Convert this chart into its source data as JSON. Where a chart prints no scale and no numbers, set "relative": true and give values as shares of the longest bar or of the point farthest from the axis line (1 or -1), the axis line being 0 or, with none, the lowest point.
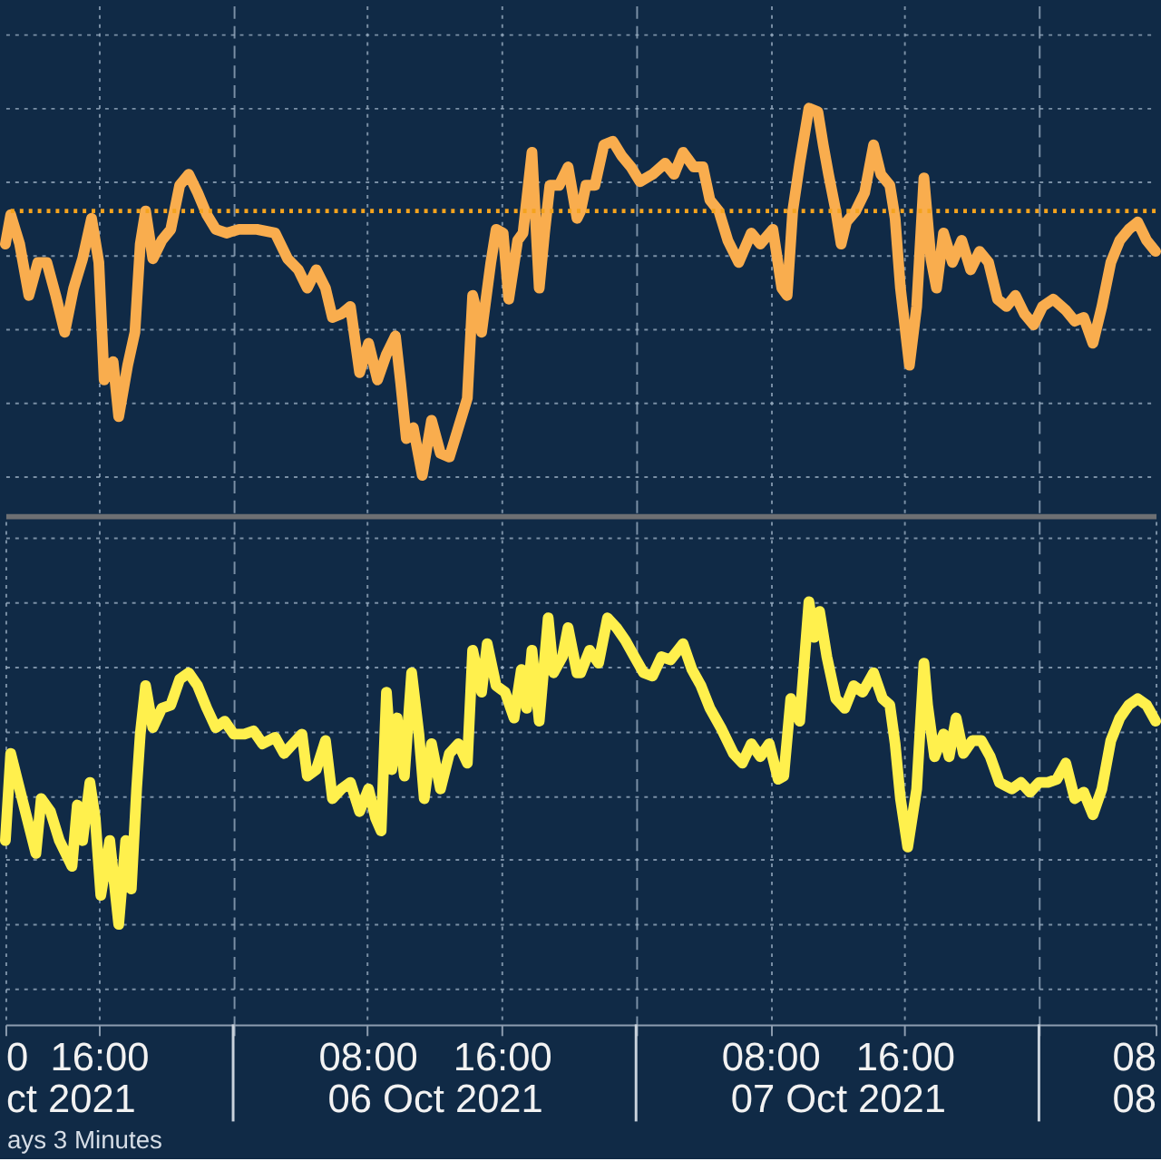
{
  "chart_data": [
    {
      "type": "line",
      "relative": true,
      "grid": true,
      "tick_labels": false,
      "xlim": [
        "2021-10-05T10:26",
        "2021-10-08T06:57"
      ],
      "xticks": [
        {
          "value": "2021-10-05T16:00",
          "label": null
        },
        {
          "value": "2021-10-06T00:00",
          "label": null
        },
        {
          "value": "2021-10-06T08:00",
          "label": null
        },
        {
          "value": "2021-10-06T16:00",
          "label": null
        },
        {
          "value": "2021-10-07T00:00",
          "label": null
        },
        {
          "value": "2021-10-07T08:00",
          "label": null
        },
        {
          "value": "2021-10-07T16:00",
          "label": null
        },
        {
          "value": "2021-10-08T00:00",
          "label": null
        }
      ],
      "x": [
        "2021-10-05T10:26",
        "2021-10-05T10:45",
        "2021-10-05T11:17",
        "2021-10-05T11:50",
        "2021-10-05T12:22",
        "2021-10-05T12:54",
        "2021-10-05T13:26",
        "2021-10-05T13:58",
        "2021-10-05T14:30",
        "2021-10-05T15:02",
        "2021-10-05T15:34",
        "2021-10-05T16:00",
        "2021-10-05T16:19",
        "2021-10-05T16:51",
        "2021-10-05T17:11",
        "2021-10-05T17:43",
        "2021-10-05T18:09",
        "2021-10-05T18:28",
        "2021-10-05T18:47",
        "2021-10-05T19:13",
        "2021-10-05T19:45",
        "2021-10-05T20:17",
        "2021-10-05T20:49",
        "2021-10-05T21:21",
        "2021-10-05T21:53",
        "2021-10-05T22:26",
        "2021-10-05T22:58",
        "2021-10-05T23:36",
        "2021-10-06T00:21",
        "2021-10-06T01:25",
        "2021-10-06T02:30",
        "2021-10-06T03:15",
        "2021-10-06T03:53",
        "2021-10-06T04:25",
        "2021-10-06T04:57",
        "2021-10-06T05:30",
        "2021-10-06T05:55",
        "2021-10-06T06:27",
        "2021-10-06T06:59",
        "2021-10-06T07:32",
        "2021-10-06T08:04",
        "2021-10-06T08:36",
        "2021-10-06T09:08",
        "2021-10-06T09:40",
        "2021-10-06T09:59",
        "2021-10-06T10:19",
        "2021-10-06T10:44",
        "2021-10-06T11:16",
        "2021-10-06T11:49",
        "2021-10-06T12:21",
        "2021-10-06T12:53",
        "2021-10-06T13:25",
        "2021-10-06T13:57",
        "2021-10-06T14:16",
        "2021-10-06T14:48",
        "2021-10-06T15:21",
        "2021-10-06T15:40",
        "2021-10-06T16:05",
        "2021-10-06T16:25",
        "2021-10-06T16:57",
        "2021-10-06T17:16",
        "2021-10-06T17:48",
        "2021-10-06T18:14",
        "2021-10-06T18:33",
        "2021-10-06T18:52",
        "2021-10-06T19:25",
        "2021-10-06T19:57",
        "2021-10-06T20:29",
        "2021-10-06T20:42",
        "2021-10-06T21:01",
        "2021-10-06T21:33",
        "2021-10-06T22:05",
        "2021-10-06T22:37",
        "2021-10-06T23:09",
        "2021-10-06T23:42",
        "2021-10-07T00:14",
        "2021-10-07T00:59",
        "2021-10-07T01:44",
        "2021-10-07T02:16",
        "2021-10-07T02:48",
        "2021-10-07T03:26",
        "2021-10-07T03:59",
        "2021-10-07T04:24",
        "2021-10-07T04:56",
        "2021-10-07T05:28",
        "2021-10-07T06:07",
        "2021-10-07T06:52",
        "2021-10-07T07:24",
        "2021-10-07T08:09",
        "2021-10-07T08:41",
        "2021-10-07T09:00",
        "2021-10-07T09:20",
        "2021-10-07T09:45",
        "2021-10-07T10:18",
        "2021-10-07T10:50",
        "2021-10-07T11:09",
        "2021-10-07T11:28",
        "2021-10-07T11:54",
        "2021-10-07T12:13",
        "2021-10-07T12:32",
        "2021-10-07T13:05",
        "2021-10-07T13:37",
        "2021-10-07T14:09",
        "2021-10-07T14:35",
        "2021-10-07T15:07",
        "2021-10-07T15:26",
        "2021-10-07T15:45",
        "2021-10-07T16:17",
        "2021-10-07T16:43",
        "2021-10-07T17:09",
        "2021-10-07T17:34",
        "2021-10-07T17:54",
        "2021-10-07T18:19",
        "2021-10-07T18:51",
        "2021-10-07T19:24",
        "2021-10-07T19:56",
        "2021-10-07T20:28",
        "2021-10-07T21:00",
        "2021-10-07T21:32",
        "2021-10-07T22:04",
        "2021-10-07T22:36",
        "2021-10-07T23:08",
        "2021-10-07T23:41",
        "2021-10-08T00:13",
        "2021-10-08T00:51",
        "2021-10-08T01:36",
        "2021-10-08T02:08",
        "2021-10-08T02:40",
        "2021-10-08T03:13",
        "2021-10-08T03:45",
        "2021-10-08T04:17",
        "2021-10-08T04:49",
        "2021-10-08T05:21",
        "2021-10-08T05:53",
        "2021-10-08T06:25",
        "2021-10-08T06:57"
      ],
      "series": [
        {
          "color": "#f9ad4e",
          "values": [
            0.63,
            0.71,
            0.63,
            0.49,
            0.58,
            0.58,
            0.49,
            0.39,
            0.51,
            0.59,
            0.7,
            0.58,
            0.26,
            0.31,
            0.16,
            0.3,
            0.39,
            0.63,
            0.72,
            0.59,
            0.64,
            0.67,
            0.79,
            0.82,
            0.77,
            0.71,
            0.67,
            0.66,
            0.67,
            0.67,
            0.66,
            0.59,
            0.56,
            0.51,
            0.56,
            0.51,
            0.43,
            0.44,
            0.46,
            0.28,
            0.36,
            0.26,
            0.33,
            0.38,
            0.25,
            0.1,
            0.13,
            0,
            0.15,
            0.06,
            0.05,
            0.13,
            0.21,
            0.49,
            0.39,
            0.58,
            0.67,
            0.66,
            0.48,
            0.64,
            0.66,
            0.88,
            0.51,
            0.66,
            0.79,
            0.79,
            0.84,
            0.7,
            0.72,
            0.79,
            0.79,
            0.9,
            0.91,
            0.87,
            0.84,
            0.8,
            0.82,
            0.85,
            0.82,
            0.88,
            0.84,
            0.84,
            0.75,
            0.72,
            0.64,
            0.58,
            0.66,
            0.63,
            0.67,
            0.51,
            0.49,
            0.72,
            0.85,
            1,
            0.99,
            0.9,
            0.82,
            0.72,
            0.63,
            0.69,
            0.72,
            0.77,
            0.9,
            0.82,
            0.79,
            0.7,
            0.51,
            0.3,
            0.46,
            0.81,
            0.59,
            0.51,
            0.66,
            0.58,
            0.64,
            0.56,
            0.61,
            0.58,
            0.48,
            0.46,
            0.49,
            0.44,
            0.41,
            0.46,
            0.48,
            0.45,
            0.42,
            0.43,
            0.36,
            0.46,
            0.58,
            0.64,
            0.67,
            0.69,
            0.64,
            0.61
          ]
        }
      ],
      "ref_lines": [
        {
          "axis": "y",
          "value": 0.72,
          "color": "#f5a31e",
          "line_style": "dotted"
        }
      ]
    },
    {
      "type": "line",
      "relative": true,
      "grid": true,
      "xlim": [
        "2021-10-05T10:26",
        "2021-10-08T06:57"
      ],
      "xticks": [
        {
          "value": "2021-10-05T10:26",
          "label": "0"
        },
        {
          "value": "2021-10-05T16:00",
          "label": "16:00"
        },
        {
          "value": "2021-10-06T00:00",
          "label": null
        },
        {
          "value": "2021-10-06T08:00",
          "label": "08:00"
        },
        {
          "value": "2021-10-06T16:00",
          "label": "16:00"
        },
        {
          "value": "2021-10-07T00:00",
          "label": null
        },
        {
          "value": "2021-10-07T08:00",
          "label": "08:00"
        },
        {
          "value": "2021-10-07T16:00",
          "label": "16:00"
        },
        {
          "value": "2021-10-08T00:00",
          "label": null
        },
        {
          "value": "2021-10-08T06:57",
          "label": "08"
        }
      ],
      "x2lim": [
        "2021-10-05T10:26",
        "2021-10-08T06:57"
      ],
      "x2ticks": [
        {
          "value": "2021-10-05T10:26",
          "label": "ct 2021"
        },
        {
          "value": "2021-10-06T12:00",
          "label": "06 Oct 2021"
        },
        {
          "value": "2021-10-07T12:00",
          "label": "07 Oct 2021"
        },
        {
          "value": "2021-10-08T06:57",
          "label": "08"
        }
      ],
      "x": [
        "2021-10-05T10:26",
        "2021-10-05T10:45",
        "2021-10-05T11:11",
        "2021-10-05T11:43",
        "2021-10-05T12:15",
        "2021-10-05T12:34",
        "2021-10-05T13:07",
        "2021-10-05T13:39",
        "2021-10-05T14:24",
        "2021-10-05T14:43",
        "2021-10-05T15:02",
        "2021-10-05T15:28",
        "2021-10-05T15:47",
        "2021-10-05T16:07",
        "2021-10-05T16:39",
        "2021-10-05T17:11",
        "2021-10-05T17:36",
        "2021-10-05T17:56",
        "2021-10-05T18:15",
        "2021-10-05T18:28",
        "2021-10-05T18:47",
        "2021-10-05T19:13",
        "2021-10-05T19:45",
        "2021-10-05T20:17",
        "2021-10-05T20:49",
        "2021-10-05T21:21",
        "2021-10-05T21:53",
        "2021-10-05T22:26",
        "2021-10-05T22:58",
        "2021-10-05T23:30",
        "2021-10-06T00:02",
        "2021-10-06T00:40",
        "2021-10-06T01:13",
        "2021-10-06T01:45",
        "2021-10-06T02:30",
        "2021-10-06T03:02",
        "2021-10-06T03:34",
        "2021-10-06T04:06",
        "2021-10-06T04:25",
        "2021-10-06T04:57",
        "2021-10-06T05:30",
        "2021-10-06T05:55",
        "2021-10-06T06:27",
        "2021-10-06T06:59",
        "2021-10-06T07:32",
        "2021-10-06T08:04",
        "2021-10-06T08:29",
        "2021-10-06T08:49",
        "2021-10-06T09:08",
        "2021-10-06T09:27",
        "2021-10-06T09:46",
        "2021-10-06T10:12",
        "2021-10-06T10:38",
        "2021-10-06T11:04",
        "2021-10-06T11:23",
        "2021-10-06T11:49",
        "2021-10-06T12:21",
        "2021-10-06T12:53",
        "2021-10-06T13:25",
        "2021-10-06T13:57",
        "2021-10-06T14:16",
        "2021-10-06T14:48",
        "2021-10-06T15:08",
        "2021-10-06T15:40",
        "2021-10-06T16:12",
        "2021-10-06T16:44",
        "2021-10-06T17:10",
        "2021-10-06T17:29",
        "2021-10-06T17:48",
        "2021-10-06T18:14",
        "2021-10-06T18:46",
        "2021-10-06T19:05",
        "2021-10-06T19:37",
        "2021-10-06T19:57",
        "2021-10-06T20:29",
        "2021-10-06T20:42",
        "2021-10-06T21:14",
        "2021-10-06T21:46",
        "2021-10-06T22:18",
        "2021-10-06T22:50",
        "2021-10-06T23:22",
        "2021-10-06T23:54",
        "2021-10-07T00:27",
        "2021-10-07T00:59",
        "2021-10-07T01:31",
        "2021-10-07T02:03",
        "2021-10-07T02:48",
        "2021-10-07T03:20",
        "2021-10-07T03:52",
        "2021-10-07T04:24",
        "2021-10-07T05:03",
        "2021-10-07T05:48",
        "2021-10-07T06:20",
        "2021-10-07T06:52",
        "2021-10-07T07:24",
        "2021-10-07T07:56",
        "2021-10-07T08:28",
        "2021-10-07T08:48",
        "2021-10-07T09:13",
        "2021-10-07T09:45",
        "2021-10-07T10:18",
        "2021-10-07T10:37",
        "2021-10-07T10:56",
        "2021-10-07T11:22",
        "2021-10-07T11:54",
        "2021-10-07T12:26",
        "2021-10-07T12:58",
        "2021-10-07T13:30",
        "2021-10-07T14:09",
        "2021-10-07T14:41",
        "2021-10-07T15:07",
        "2021-10-07T15:26",
        "2021-10-07T15:45",
        "2021-10-07T16:11",
        "2021-10-07T16:43",
        "2021-10-07T17:09",
        "2021-10-07T17:22",
        "2021-10-07T17:47",
        "2021-10-07T18:19",
        "2021-10-07T18:39",
        "2021-10-07T19:04",
        "2021-10-07T19:30",
        "2021-10-07T20:02",
        "2021-10-07T20:34",
        "2021-10-07T21:06",
        "2021-10-07T21:39",
        "2021-10-07T22:23",
        "2021-10-07T22:56",
        "2021-10-07T23:28",
        "2021-10-08T00:00",
        "2021-10-08T00:32",
        "2021-10-08T01:04",
        "2021-10-08T01:36",
        "2021-10-08T02:08",
        "2021-10-08T02:40",
        "2021-10-08T03:13",
        "2021-10-08T03:45",
        "2021-10-08T04:17",
        "2021-10-08T04:49",
        "2021-10-08T05:21",
        "2021-10-08T05:53",
        "2021-10-08T06:25",
        "2021-10-08T06:57"
      ],
      "series": [
        {
          "color": "#fff04d",
          "values": [
            0.26,
            0.53,
            0.44,
            0.33,
            0.22,
            0.39,
            0.35,
            0.26,
            0.18,
            0.37,
            0.26,
            0.44,
            0.33,
            0.09,
            0.26,
            0,
            0.26,
            0.11,
            0.42,
            0.59,
            0.74,
            0.61,
            0.67,
            0.68,
            0.76,
            0.78,
            0.74,
            0.67,
            0.61,
            0.63,
            0.59,
            0.59,
            0.6,
            0.56,
            0.58,
            0.53,
            0.56,
            0.59,
            0.46,
            0.48,
            0.57,
            0.39,
            0.42,
            0.44,
            0.35,
            0.42,
            0.33,
            0.29,
            0.72,
            0.48,
            0.64,
            0.46,
            0.78,
            0.59,
            0.39,
            0.56,
            0.42,
            0.53,
            0.56,
            0.5,
            0.85,
            0.72,
            0.87,
            0.74,
            0.72,
            0.64,
            0.79,
            0.67,
            0.85,
            0.63,
            0.95,
            0.78,
            0.83,
            0.92,
            0.78,
            0.78,
            0.85,
            0.81,
            0.95,
            0.92,
            0.88,
            0.83,
            0.78,
            0.77,
            0.83,
            0.82,
            0.87,
            0.79,
            0.74,
            0.67,
            0.61,
            0.53,
            0.5,
            0.56,
            0.52,
            0.56,
            0.45,
            0.46,
            0.7,
            0.63,
            1,
            0.89,
            0.97,
            0.83,
            0.7,
            0.67,
            0.74,
            0.72,
            0.78,
            0.7,
            0.68,
            0.56,
            0.39,
            0.24,
            0.42,
            0.81,
            0.68,
            0.52,
            0.59,
            0.52,
            0.64,
            0.53,
            0.57,
            0.57,
            0.52,
            0.44,
            0.42,
            0.44,
            0.41,
            0.44,
            0.44,
            0.45,
            0.5,
            0.39,
            0.41,
            0.34,
            0.42,
            0.57,
            0.64,
            0.68,
            0.7,
            0.68,
            0.63
          ]
        }
      ],
      "annotations": [
        "ays 3 Minutes"
      ]
    }
  ]
}
